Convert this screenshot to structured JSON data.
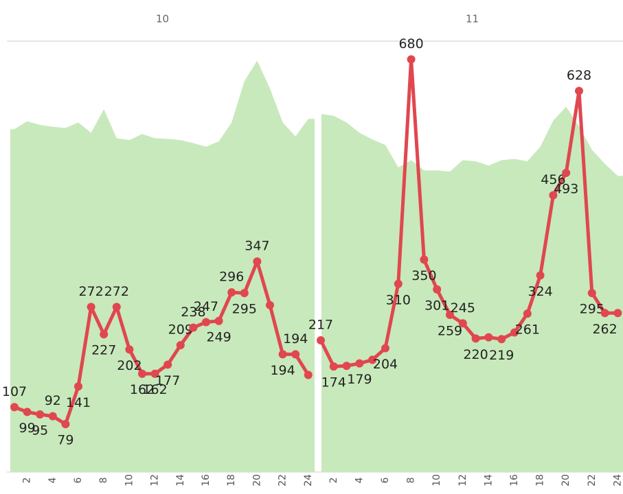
{
  "chart_data": {
    "type": "line",
    "ylim": [
      0,
      710
    ],
    "line_color": "#e0474f",
    "area_color": "#c8e9bc",
    "panels": [
      {
        "title": "10",
        "categories": [
          null,
          2,
          null,
          4,
          null,
          6,
          null,
          8,
          null,
          10,
          null,
          12,
          null,
          14,
          null,
          16,
          null,
          18,
          null,
          20,
          null,
          22,
          null,
          24
        ],
        "area": {
          "values": [
            565,
            578,
            572,
            569,
            567,
            576,
            559,
            598,
            550,
            547,
            557,
            550,
            549,
            547,
            542,
            536,
            545,
            576,
            644,
            678,
            632,
            576,
            553,
            582
          ]
        },
        "line": {
          "values": [
            107,
            99,
            95,
            92,
            79,
            141,
            272,
            227,
            272,
            202,
            162,
            162,
            177,
            209,
            238,
            247,
            249,
            296,
            295,
            347,
            275,
            194,
            194,
            160
          ],
          "value_labels": [
            "107",
            "99",
            "95",
            "92",
            "79",
            "141",
            "272",
            "227",
            "272",
            "202",
            "162",
            "162",
            "177",
            "209",
            "238",
            "247",
            "249",
            "296",
            "295",
            "347",
            null,
            "194",
            "194",
            null
          ]
        }
      },
      {
        "title": "11",
        "categories": [
          null,
          2,
          null,
          4,
          null,
          6,
          null,
          8,
          null,
          10,
          null,
          12,
          null,
          14,
          null,
          16,
          null,
          18,
          null,
          20,
          null,
          22,
          null,
          24
        ],
        "area": {
          "values": [
            590,
            587,
            576,
            559,
            548,
            539,
            502,
            514,
            497,
            497,
            495,
            514,
            512,
            505,
            514,
            516,
            512,
            536,
            579,
            602,
            570,
            531,
            508,
            488
          ]
        },
        "line": {
          "values": [
            217,
            174,
            175,
            179,
            185,
            204,
            310,
            680,
            350,
            301,
            259,
            245,
            220,
            222,
            219,
            230,
            261,
            324,
            456,
            493,
            628,
            295,
            262,
            262
          ],
          "value_labels": [
            "217",
            "174",
            null,
            "179",
            null,
            "204",
            "310",
            "680",
            "350",
            "301",
            "259",
            "245",
            "220",
            null,
            "219",
            null,
            "261",
            "324",
            "456",
            "493",
            "628",
            "295",
            "262",
            null
          ]
        }
      }
    ]
  }
}
